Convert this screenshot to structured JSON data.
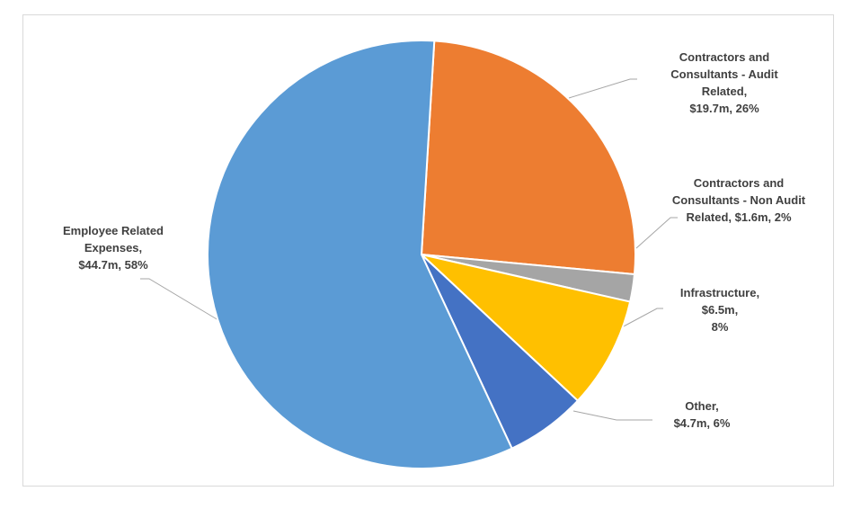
{
  "chart_data": {
    "type": "pie",
    "title": "",
    "slices": [
      {
        "name": "Contractors and Consultants - Audit Related",
        "value": 19.7,
        "percent": 26,
        "color": "#ED7D31",
        "label_lines": [
          "Contractors and",
          "Consultants - Audit",
          "Related,",
          "$19.7m, 26%"
        ]
      },
      {
        "name": "Contractors and Consultants - Non Audit Related",
        "value": 1.6,
        "percent": 2,
        "color": "#A5A5A5",
        "label_lines": [
          "Contractors and",
          "Consultants - Non Audit",
          "Related, $1.6m, 2%"
        ]
      },
      {
        "name": "Infrastructure",
        "value": 6.5,
        "percent": 8,
        "color": "#FFC000",
        "label_lines": [
          "Infrastructure,",
          "$6.5m,",
          "8%"
        ]
      },
      {
        "name": "Other",
        "value": 4.7,
        "percent": 6,
        "color": "#4472C4",
        "label_lines": [
          "Other,",
          "$4.7m, 6%"
        ]
      },
      {
        "name": "Employee Related Expenses",
        "value": 44.7,
        "percent": 58,
        "color": "#5B9BD5",
        "label_lines": [
          "Employee Related",
          "Expenses,",
          "$44.7m, 58%"
        ]
      }
    ]
  }
}
